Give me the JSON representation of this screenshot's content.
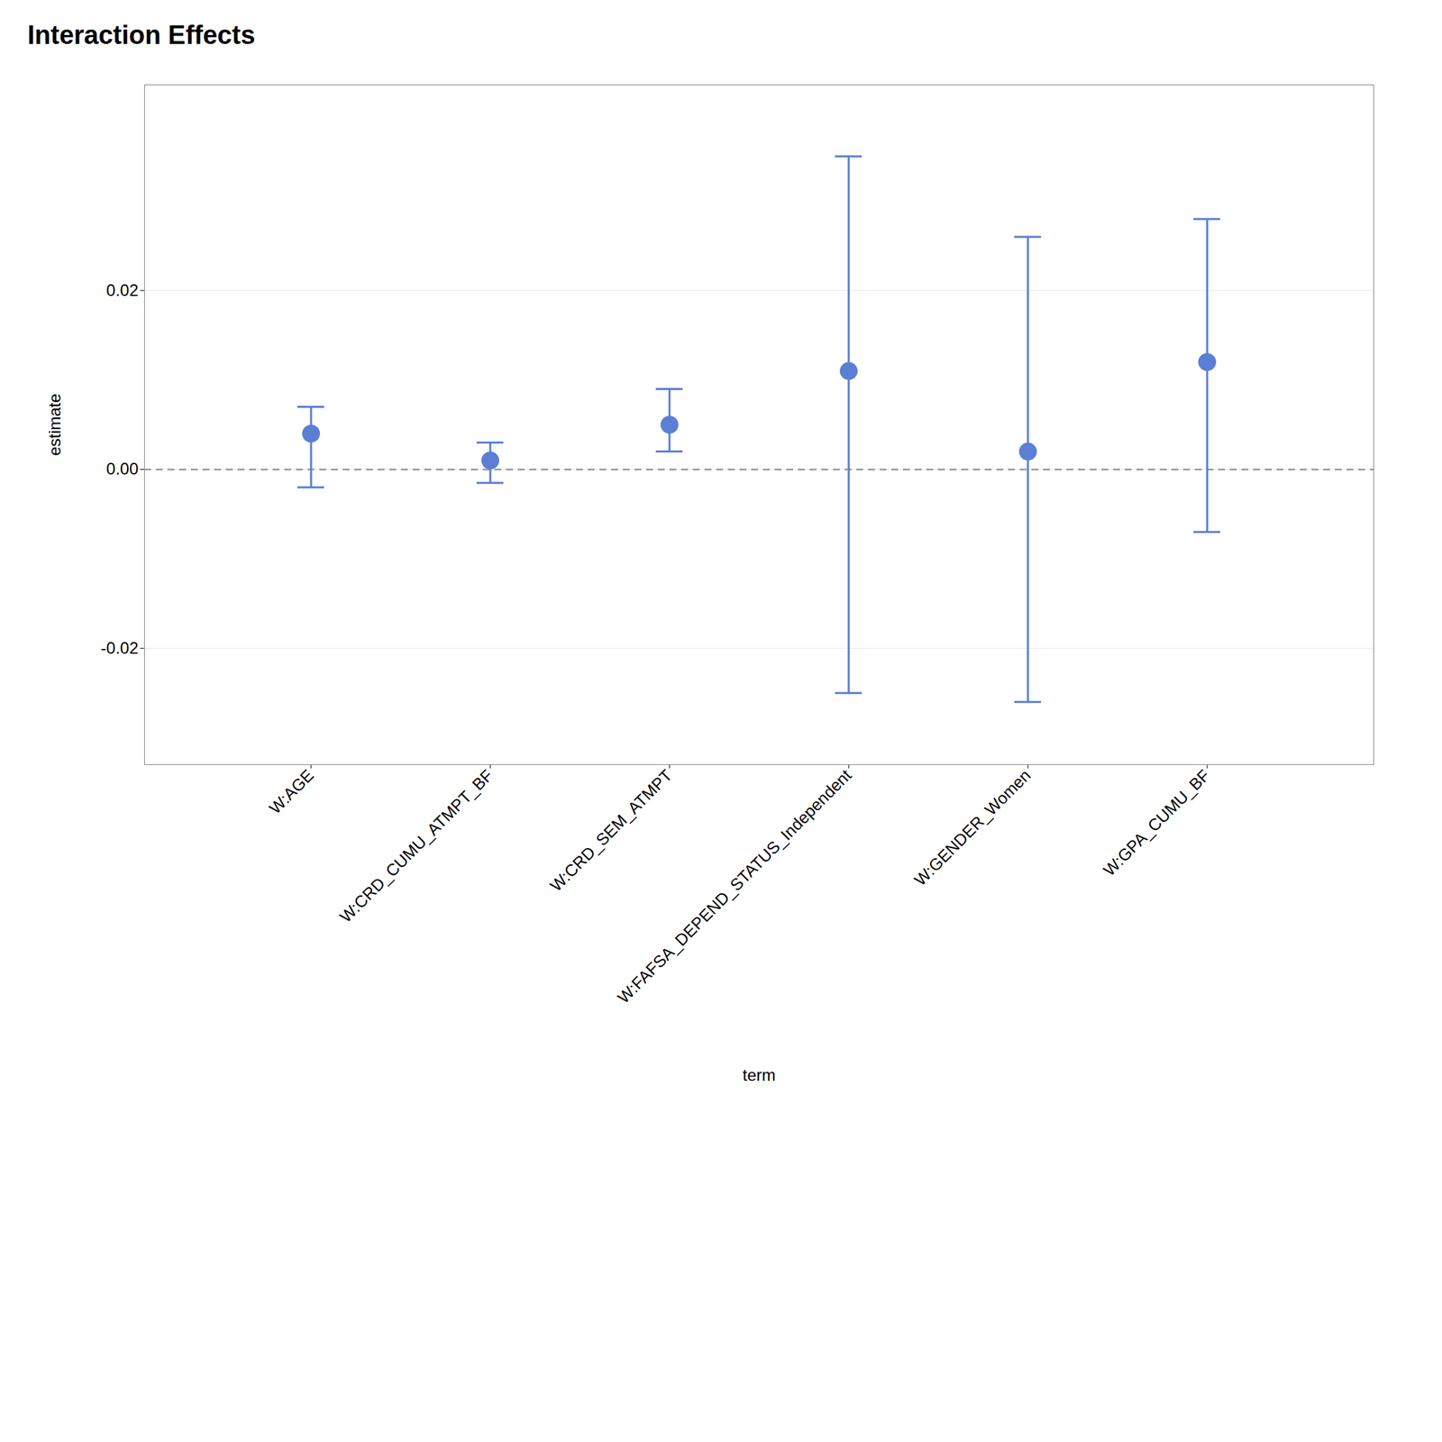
{
  "chart_data": {
    "type": "errorbar",
    "title": "Interaction Effects",
    "xlabel": "term",
    "ylabel": "estimate",
    "categories": [
      "W:AGE",
      "W:CRD_CUMU_ATMPT_BF",
      "W:CRD_SEM_ATMPT",
      "W:FAFSA_DEPEND_STATUS_Independent",
      "W:GENDER_Women",
      "W:GPA_CUMU_BF"
    ],
    "values": [
      0.004,
      0.001,
      0.005,
      0.011,
      0.002,
      0.012
    ],
    "ci_lower": [
      -0.002,
      -0.0015,
      0.002,
      -0.025,
      -0.026,
      -0.007
    ],
    "ci_upper": [
      0.007,
      0.003,
      0.009,
      0.035,
      0.026,
      0.028
    ],
    "color": "#5b7fd4",
    "ylim": [
      -0.033,
      0.043
    ],
    "yticks": [
      -0.02,
      {
        "value": 0,
        "label": "0.00"
      },
      0.02
    ],
    "grid": true
  }
}
